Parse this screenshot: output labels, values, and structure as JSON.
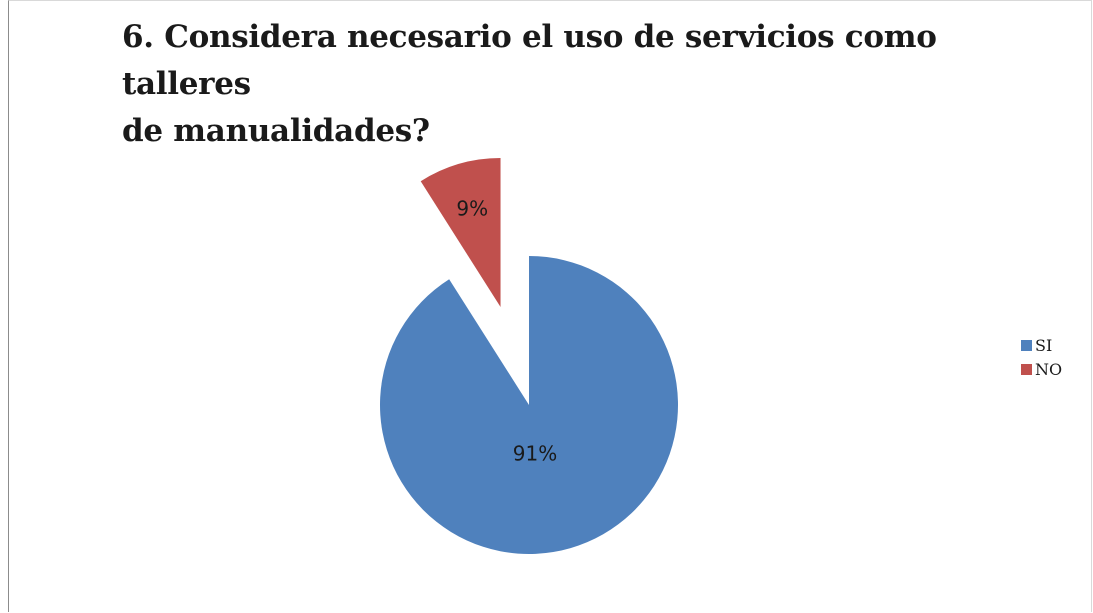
{
  "chart_data": {
    "type": "pie",
    "title_lines": [
      "6. Considera necesario el uso de servicios como talleres",
      "de manualidades?"
    ],
    "slices": [
      {
        "label": "SI",
        "value": 91,
        "display": "91%",
        "color": "#4f81bd",
        "exploded": false
      },
      {
        "label": "NO",
        "value": 9,
        "display": "9%",
        "color": "#c0504d",
        "exploded": true
      }
    ],
    "legend_position": "right"
  }
}
